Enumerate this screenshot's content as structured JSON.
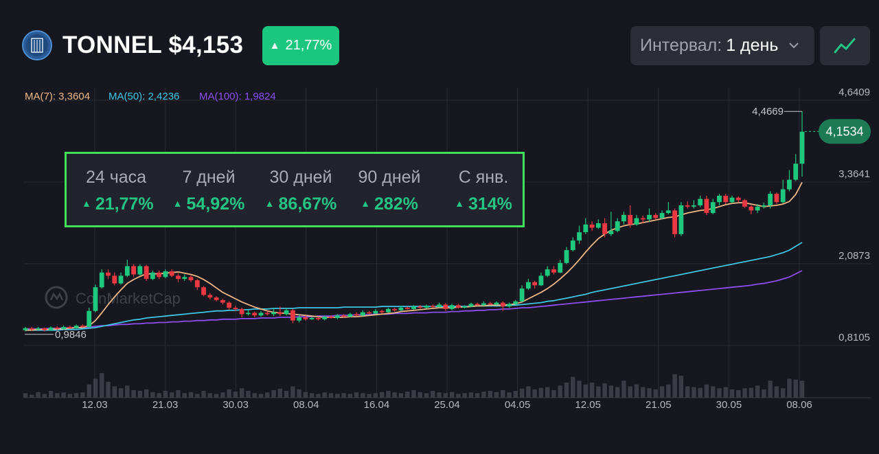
{
  "header": {
    "title": "TONNEL $4,153",
    "change_badge": "21,77%",
    "interval_label": "Интервал:",
    "interval_value": "1 день"
  },
  "stats": [
    {
      "label": "24 часа",
      "value": "21,77%"
    },
    {
      "label": "7 дней",
      "value": "54,92%"
    },
    {
      "label": "30 дней",
      "value": "86,67%"
    },
    {
      "label": "90 дней",
      "value": "282%"
    },
    {
      "label": "С янв.",
      "value": "314%"
    }
  ],
  "colors": {
    "background": "#17181f",
    "up": "#1fc87f",
    "down": "#ea3943",
    "ma7": "#f0b787",
    "ma50": "#3fc6e6",
    "ma100": "#8b4ff2",
    "highlight_border": "#3ee35b"
  },
  "icons": {
    "chart_button": "line-chart-icon",
    "dropdown": "chevron-down-icon",
    "logo": "tonnel-logo"
  },
  "chart_data": {
    "type": "candlestick",
    "legend": [
      {
        "name": "MA(7)",
        "value": "3,3604"
      },
      {
        "name": "MA(50)",
        "value": "2,4236"
      },
      {
        "name": "MA(100)",
        "value": "1,9824"
      }
    ],
    "y_ticks": [
      "4,6409",
      "3,3641",
      "2,0873",
      "0,8105"
    ],
    "x_ticks": [
      "12.03",
      "21.03",
      "30.03",
      "08.04",
      "16.04",
      "25.04",
      "04.05",
      "12.05",
      "21.05",
      "30.05",
      "08.06"
    ],
    "ylim": [
      0.8105,
      4.6409
    ],
    "grid": true,
    "watermark": "CoinMarketCap",
    "max_label": "4,4669",
    "max_value": 4.4669,
    "min_label": "0,9846",
    "min_value": 0.9846,
    "current_label": "4,1534",
    "current_value": 4.1534,
    "candles": [
      [
        1.05,
        1.08,
        1.1,
        1.03
      ],
      [
        1.08,
        1.06,
        1.1,
        1.04
      ],
      [
        1.06,
        1.08,
        1.1,
        1.05
      ],
      [
        1.08,
        1.05,
        1.09,
        1.03
      ],
      [
        1.05,
        1.09,
        1.11,
        1.04
      ],
      [
        1.09,
        1.07,
        1.11,
        1.05
      ],
      [
        1.07,
        1.1,
        1.12,
        1.06
      ],
      [
        1.1,
        1.08,
        1.12,
        1.07
      ],
      [
        1.08,
        1.12,
        1.14,
        1.07
      ],
      [
        1.12,
        1.1,
        1.14,
        1.09
      ],
      [
        1.1,
        1.35,
        1.4,
        1.09
      ],
      [
        1.35,
        1.72,
        1.76,
        1.33
      ],
      [
        1.72,
        1.95,
        2.0,
        1.7
      ],
      [
        1.95,
        1.9,
        2.0,
        1.85
      ],
      [
        1.9,
        1.78,
        1.95,
        1.75
      ],
      [
        1.78,
        1.9,
        1.95,
        1.76
      ],
      [
        1.9,
        2.05,
        2.15,
        1.88
      ],
      [
        2.05,
        1.92,
        2.08,
        1.88
      ],
      [
        1.92,
        2.05,
        2.08,
        1.9
      ],
      [
        2.05,
        1.85,
        2.07,
        1.82
      ],
      [
        1.85,
        1.95,
        1.98,
        1.83
      ],
      [
        1.95,
        1.88,
        1.98,
        1.85
      ],
      [
        1.88,
        1.97,
        2.0,
        1.86
      ],
      [
        1.97,
        1.9,
        2.0,
        1.88
      ],
      [
        1.9,
        1.85,
        1.94,
        1.8
      ],
      [
        1.85,
        1.88,
        1.92,
        1.82
      ],
      [
        1.88,
        1.83,
        1.9,
        1.8
      ],
      [
        1.83,
        1.72,
        1.85,
        1.68
      ],
      [
        1.72,
        1.6,
        1.74,
        1.58
      ],
      [
        1.6,
        1.56,
        1.63,
        1.53
      ],
      [
        1.56,
        1.52,
        1.58,
        1.5
      ],
      [
        1.52,
        1.48,
        1.54,
        1.45
      ],
      [
        1.48,
        1.4,
        1.5,
        1.37
      ],
      [
        1.4,
        1.38,
        1.43,
        1.35
      ],
      [
        1.38,
        1.3,
        1.4,
        1.25
      ],
      [
        1.3,
        1.32,
        1.36,
        1.28
      ],
      [
        1.32,
        1.28,
        1.34,
        1.25
      ],
      [
        1.28,
        1.32,
        1.35,
        1.26
      ],
      [
        1.32,
        1.3,
        1.35,
        1.28
      ],
      [
        1.3,
        1.33,
        1.4,
        1.27
      ],
      [
        1.33,
        1.3,
        1.42,
        1.27
      ],
      [
        1.3,
        1.36,
        1.4,
        1.28
      ],
      [
        1.36,
        1.2,
        1.38,
        1.16
      ],
      [
        1.2,
        1.25,
        1.3,
        1.17
      ],
      [
        1.25,
        1.22,
        1.28,
        1.2
      ],
      [
        1.22,
        1.24,
        1.26,
        1.21
      ],
      [
        1.24,
        1.22,
        1.26,
        1.2
      ],
      [
        1.22,
        1.26,
        1.28,
        1.2
      ],
      [
        1.26,
        1.24,
        1.28,
        1.23
      ],
      [
        1.24,
        1.28,
        1.3,
        1.22
      ],
      [
        1.28,
        1.26,
        1.3,
        1.24
      ],
      [
        1.26,
        1.3,
        1.32,
        1.25
      ],
      [
        1.3,
        1.28,
        1.33,
        1.27
      ],
      [
        1.28,
        1.33,
        1.36,
        1.27
      ],
      [
        1.33,
        1.31,
        1.35,
        1.3
      ],
      [
        1.31,
        1.35,
        1.38,
        1.3
      ],
      [
        1.35,
        1.33,
        1.37,
        1.31
      ],
      [
        1.33,
        1.38,
        1.4,
        1.32
      ],
      [
        1.38,
        1.36,
        1.4,
        1.34
      ],
      [
        1.36,
        1.4,
        1.42,
        1.35
      ],
      [
        1.4,
        1.38,
        1.42,
        1.37
      ],
      [
        1.38,
        1.42,
        1.44,
        1.37
      ],
      [
        1.42,
        1.4,
        1.44,
        1.38
      ],
      [
        1.4,
        1.43,
        1.45,
        1.39
      ],
      [
        1.43,
        1.41,
        1.45,
        1.4
      ],
      [
        1.41,
        1.45,
        1.48,
        1.4
      ],
      [
        1.45,
        1.38,
        1.47,
        1.35
      ],
      [
        1.38,
        1.44,
        1.46,
        1.36
      ],
      [
        1.44,
        1.4,
        1.46,
        1.39
      ],
      [
        1.4,
        1.42,
        1.44,
        1.39
      ],
      [
        1.42,
        1.46,
        1.48,
        1.41
      ],
      [
        1.46,
        1.44,
        1.48,
        1.43
      ],
      [
        1.44,
        1.47,
        1.5,
        1.43
      ],
      [
        1.47,
        1.45,
        1.49,
        1.44
      ],
      [
        1.45,
        1.48,
        1.5,
        1.44
      ],
      [
        1.48,
        1.42,
        1.5,
        1.35
      ],
      [
        1.42,
        1.46,
        1.48,
        1.4
      ],
      [
        1.46,
        1.5,
        1.52,
        1.45
      ],
      [
        1.5,
        1.7,
        1.75,
        1.49
      ],
      [
        1.7,
        1.8,
        1.85,
        1.68
      ],
      [
        1.8,
        1.75,
        1.82,
        1.7
      ],
      [
        1.75,
        1.9,
        1.95,
        1.74
      ],
      [
        1.9,
        2.0,
        2.05,
        1.88
      ],
      [
        2.0,
        1.95,
        2.05,
        1.92
      ],
      [
        1.95,
        2.1,
        2.15,
        1.94
      ],
      [
        2.1,
        2.3,
        2.35,
        2.08
      ],
      [
        2.3,
        2.45,
        2.5,
        2.28
      ],
      [
        2.45,
        2.58,
        2.68,
        2.4
      ],
      [
        2.58,
        2.7,
        2.8,
        2.55
      ],
      [
        2.7,
        2.65,
        2.75,
        2.6
      ],
      [
        2.65,
        2.72,
        2.78,
        2.63
      ],
      [
        2.72,
        2.55,
        2.8,
        2.5
      ],
      [
        2.55,
        2.6,
        2.9,
        2.52
      ],
      [
        2.6,
        2.75,
        2.8,
        2.58
      ],
      [
        2.75,
        2.85,
        2.9,
        2.7
      ],
      [
        2.85,
        2.7,
        3.0,
        2.65
      ],
      [
        2.7,
        2.8,
        2.85,
        2.68
      ],
      [
        2.8,
        2.78,
        2.84,
        2.72
      ],
      [
        2.78,
        2.85,
        2.95,
        2.74
      ],
      [
        2.85,
        2.8,
        2.88,
        2.77
      ],
      [
        2.8,
        2.88,
        2.92,
        2.78
      ],
      [
        2.88,
        2.92,
        3.05,
        2.86
      ],
      [
        2.92,
        2.55,
        2.95,
        2.5
      ],
      [
        2.55,
        3.0,
        3.05,
        2.52
      ],
      [
        3.0,
        2.98,
        3.06,
        2.95
      ],
      [
        2.98,
        3.0,
        3.08,
        2.95
      ],
      [
        3.0,
        3.1,
        3.15,
        2.97
      ],
      [
        3.1,
        2.88,
        3.15,
        2.85
      ],
      [
        2.88,
        3.05,
        3.1,
        2.86
      ],
      [
        3.05,
        3.15,
        3.18,
        3.0
      ],
      [
        3.15,
        3.05,
        3.18,
        3.02
      ],
      [
        3.05,
        3.12,
        3.15,
        3.03
      ],
      [
        3.12,
        3.08,
        3.14,
        3.05
      ],
      [
        3.08,
        2.98,
        3.1,
        2.96
      ],
      [
        2.98,
        2.92,
        3.0,
        2.86
      ],
      [
        2.92,
        2.98,
        3.02,
        2.88
      ],
      [
        2.98,
        3.0,
        3.04,
        2.95
      ],
      [
        3.0,
        3.18,
        3.22,
        2.95
      ],
      [
        3.18,
        3.05,
        3.2,
        3.02
      ],
      [
        3.05,
        3.25,
        3.4,
        3.03
      ],
      [
        3.25,
        3.4,
        3.55,
        3.22
      ],
      [
        3.4,
        3.65,
        3.8,
        3.38
      ],
      [
        3.65,
        4.15,
        4.47,
        3.45
      ]
    ],
    "volume": [
      0.12,
      0.08,
      0.15,
      0.1,
      0.18,
      0.12,
      0.14,
      0.1,
      0.12,
      0.14,
      0.35,
      0.5,
      0.65,
      0.42,
      0.3,
      0.25,
      0.32,
      0.2,
      0.18,
      0.22,
      0.15,
      0.12,
      0.18,
      0.14,
      0.2,
      0.12,
      0.15,
      0.1,
      0.18,
      0.12,
      0.1,
      0.14,
      0.22,
      0.16,
      0.25,
      0.18,
      0.12,
      0.1,
      0.14,
      0.2,
      0.24,
      0.18,
      0.3,
      0.22,
      0.15,
      0.12,
      0.1,
      0.14,
      0.12,
      0.1,
      0.12,
      0.1,
      0.14,
      0.12,
      0.1,
      0.12,
      0.15,
      0.18,
      0.14,
      0.12,
      0.16,
      0.2,
      0.15,
      0.12,
      0.18,
      0.14,
      0.12,
      0.15,
      0.1,
      0.12,
      0.14,
      0.12,
      0.16,
      0.18,
      0.15,
      0.2,
      0.14,
      0.18,
      0.24,
      0.3,
      0.22,
      0.26,
      0.28,
      0.2,
      0.32,
      0.4,
      0.55,
      0.45,
      0.35,
      0.4,
      0.3,
      0.38,
      0.32,
      0.28,
      0.45,
      0.3,
      0.35,
      0.28,
      0.25,
      0.22,
      0.3,
      0.35,
      0.62,
      0.58,
      0.3,
      0.28,
      0.26,
      0.35,
      0.3,
      0.25,
      0.28,
      0.22,
      0.2,
      0.25,
      0.26,
      0.32,
      0.22,
      0.45,
      0.3,
      0.25,
      0.5,
      0.48,
      0.45
    ],
    "ma7": [
      1.05,
      1.05,
      1.06,
      1.06,
      1.06,
      1.07,
      1.07,
      1.08,
      1.09,
      1.09,
      1.12,
      1.2,
      1.32,
      1.45,
      1.57,
      1.68,
      1.78,
      1.84,
      1.89,
      1.93,
      1.93,
      1.93,
      1.94,
      1.95,
      1.96,
      1.94,
      1.92,
      1.89,
      1.84,
      1.78,
      1.71,
      1.64,
      1.59,
      1.54,
      1.49,
      1.45,
      1.41,
      1.38,
      1.35,
      1.33,
      1.32,
      1.31,
      1.3,
      1.29,
      1.28,
      1.27,
      1.26,
      1.25,
      1.25,
      1.25,
      1.25,
      1.26,
      1.26,
      1.27,
      1.28,
      1.29,
      1.3,
      1.31,
      1.32,
      1.34,
      1.35,
      1.36,
      1.37,
      1.38,
      1.39,
      1.4,
      1.4,
      1.4,
      1.41,
      1.41,
      1.42,
      1.43,
      1.43,
      1.44,
      1.44,
      1.44,
      1.45,
      1.46,
      1.49,
      1.54,
      1.59,
      1.64,
      1.7,
      1.77,
      1.85,
      1.94,
      2.04,
      2.15,
      2.27,
      2.38,
      2.48,
      2.55,
      2.61,
      2.65,
      2.68,
      2.7,
      2.71,
      2.73,
      2.75,
      2.77,
      2.79,
      2.81,
      2.82,
      2.85,
      2.88,
      2.9,
      2.92,
      2.93,
      2.95,
      2.98,
      3.01,
      3.03,
      3.04,
      3.04,
      3.02,
      3.0,
      2.98,
      2.99,
      3.0,
      3.02,
      3.06,
      3.17,
      3.36
    ],
    "ma50": [
      1.05,
      1.05,
      1.05,
      1.05,
      1.05,
      1.05,
      1.06,
      1.06,
      1.06,
      1.07,
      1.08,
      1.09,
      1.11,
      1.13,
      1.15,
      1.17,
      1.19,
      1.21,
      1.22,
      1.24,
      1.25,
      1.26,
      1.27,
      1.28,
      1.29,
      1.3,
      1.31,
      1.32,
      1.33,
      1.34,
      1.35,
      1.35,
      1.36,
      1.36,
      1.37,
      1.37,
      1.38,
      1.38,
      1.38,
      1.39,
      1.39,
      1.39,
      1.39,
      1.4,
      1.4,
      1.4,
      1.4,
      1.4,
      1.4,
      1.4,
      1.41,
      1.41,
      1.41,
      1.41,
      1.41,
      1.41,
      1.42,
      1.42,
      1.42,
      1.42,
      1.42,
      1.42,
      1.42,
      1.42,
      1.42,
      1.42,
      1.42,
      1.42,
      1.42,
      1.42,
      1.42,
      1.43,
      1.43,
      1.43,
      1.43,
      1.43,
      1.44,
      1.44,
      1.45,
      1.46,
      1.47,
      1.48,
      1.5,
      1.51,
      1.53,
      1.55,
      1.57,
      1.59,
      1.61,
      1.64,
      1.66,
      1.68,
      1.7,
      1.72,
      1.74,
      1.76,
      1.78,
      1.8,
      1.82,
      1.84,
      1.86,
      1.88,
      1.9,
      1.92,
      1.94,
      1.96,
      1.98,
      2.0,
      2.02,
      2.04,
      2.06,
      2.08,
      2.1,
      2.12,
      2.14,
      2.16,
      2.18,
      2.2,
      2.23,
      2.26,
      2.3,
      2.36,
      2.42
    ],
    "ma100": [
      1.07,
      1.07,
      1.07,
      1.07,
      1.08,
      1.08,
      1.08,
      1.09,
      1.09,
      1.09,
      1.1,
      1.11,
      1.12,
      1.12,
      1.13,
      1.14,
      1.14,
      1.15,
      1.15,
      1.16,
      1.16,
      1.17,
      1.17,
      1.18,
      1.18,
      1.19,
      1.19,
      1.2,
      1.2,
      1.21,
      1.21,
      1.22,
      1.22,
      1.22,
      1.23,
      1.23,
      1.23,
      1.24,
      1.24,
      1.24,
      1.25,
      1.25,
      1.25,
      1.26,
      1.26,
      1.26,
      1.27,
      1.27,
      1.27,
      1.28,
      1.28,
      1.28,
      1.29,
      1.29,
      1.29,
      1.3,
      1.3,
      1.3,
      1.31,
      1.31,
      1.31,
      1.32,
      1.32,
      1.32,
      1.33,
      1.33,
      1.33,
      1.34,
      1.34,
      1.35,
      1.35,
      1.36,
      1.36,
      1.37,
      1.37,
      1.38,
      1.38,
      1.39,
      1.4,
      1.4,
      1.41,
      1.42,
      1.43,
      1.44,
      1.45,
      1.46,
      1.47,
      1.48,
      1.49,
      1.5,
      1.51,
      1.52,
      1.53,
      1.54,
      1.55,
      1.56,
      1.57,
      1.58,
      1.59,
      1.6,
      1.61,
      1.62,
      1.63,
      1.64,
      1.65,
      1.66,
      1.67,
      1.68,
      1.69,
      1.7,
      1.71,
      1.72,
      1.73,
      1.74,
      1.75,
      1.77,
      1.78,
      1.8,
      1.82,
      1.85,
      1.88,
      1.93,
      1.98
    ]
  }
}
